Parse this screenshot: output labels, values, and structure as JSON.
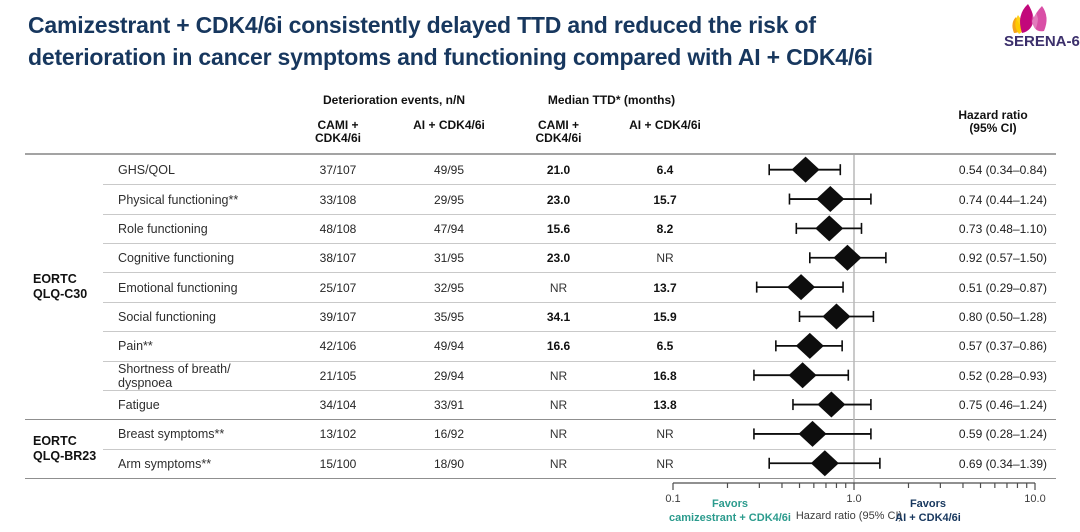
{
  "title": {
    "line1": "Camizestrant + CDK4/6i consistently delayed TTD and reduced the risk of",
    "line2": "deterioration in cancer symptoms and functioning compared with AI + CDK4/6i"
  },
  "logo": {
    "text": "SERENA-6"
  },
  "table": {
    "header": {
      "events_group": "Deterioration events, n/N",
      "ttd_group": "Median TTD* (months)",
      "hr_line1": "Hazard ratio",
      "hr_line2": "(95% CI)",
      "cami_line1": "CAMI +",
      "cami_line2": "CDK4/6i",
      "ai": "AI + CDK4/6i"
    },
    "groups": [
      {
        "line1": "EORTC",
        "line2": "QLQ-C30",
        "row_span": [
          0,
          8
        ]
      },
      {
        "line1": "EORTC",
        "line2": "QLQ-BR23",
        "row_span": [
          9,
          10
        ]
      }
    ]
  },
  "chart_data": {
    "type": "forest",
    "x_axis": {
      "scale": "log",
      "min": 0.1,
      "max": 10.0,
      "tick_values": [
        0.1,
        1.0,
        10.0
      ],
      "tick_labels": [
        "0.1",
        "1.0",
        "10.0"
      ],
      "label": "Hazard ratio (95% CI)",
      "reference_line": 1.0
    },
    "favors_left": {
      "line1": "Favors",
      "line2": "camizestrant + CDK4/6i"
    },
    "favors_right": {
      "line1": "Favors",
      "line2": "AI + CDK4/6i"
    },
    "rows": [
      {
        "group": "EORTC QLQ-C30",
        "label": "GHS/QOL",
        "events_cami": "37/107",
        "events_ai": "49/95",
        "ttd_cami": "21.0",
        "ttd_ai": "6.4",
        "hr": 0.54,
        "ci_low": 0.34,
        "ci_high": 0.84,
        "hr_text": "0.54 (0.34–0.84)"
      },
      {
        "group": "EORTC QLQ-C30",
        "label": "Physical functioning**",
        "events_cami": "33/108",
        "events_ai": "29/95",
        "ttd_cami": "23.0",
        "ttd_ai": "15.7",
        "hr": 0.74,
        "ci_low": 0.44,
        "ci_high": 1.24,
        "hr_text": "0.74 (0.44–1.24)"
      },
      {
        "group": "EORTC QLQ-C30",
        "label": "Role functioning",
        "events_cami": "48/108",
        "events_ai": "47/94",
        "ttd_cami": "15.6",
        "ttd_ai": "8.2",
        "hr": 0.73,
        "ci_low": 0.48,
        "ci_high": 1.1,
        "hr_text": "0.73 (0.48–1.10)"
      },
      {
        "group": "EORTC QLQ-C30",
        "label": "Cognitive functioning",
        "events_cami": "38/107",
        "events_ai": "31/95",
        "ttd_cami": "23.0",
        "ttd_ai": "NR",
        "hr": 0.92,
        "ci_low": 0.57,
        "ci_high": 1.5,
        "hr_text": "0.92 (0.57–1.50)"
      },
      {
        "group": "EORTC QLQ-C30",
        "label": "Emotional functioning",
        "events_cami": "25/107",
        "events_ai": "32/95",
        "ttd_cami": "NR",
        "ttd_ai": "13.7",
        "hr": 0.51,
        "ci_low": 0.29,
        "ci_high": 0.87,
        "hr_text": "0.51 (0.29–0.87)"
      },
      {
        "group": "EORTC QLQ-C30",
        "label": "Social functioning",
        "events_cami": "39/107",
        "events_ai": "35/95",
        "ttd_cami": "34.1",
        "ttd_ai": "15.9",
        "hr": 0.8,
        "ci_low": 0.5,
        "ci_high": 1.28,
        "hr_text": "0.80 (0.50–1.28)"
      },
      {
        "group": "EORTC QLQ-C30",
        "label": "Pain**",
        "events_cami": "42/106",
        "events_ai": "49/94",
        "ttd_cami": "16.6",
        "ttd_ai": "6.5",
        "hr": 0.57,
        "ci_low": 0.37,
        "ci_high": 0.86,
        "hr_text": "0.57 (0.37–0.86)"
      },
      {
        "group": "EORTC QLQ-C30",
        "label": "Shortness of breath/ dyspnoea",
        "events_cami": "21/105",
        "events_ai": "29/94",
        "ttd_cami": "NR",
        "ttd_ai": "16.8",
        "hr": 0.52,
        "ci_low": 0.28,
        "ci_high": 0.93,
        "hr_text": "0.52 (0.28–0.93)"
      },
      {
        "group": "EORTC QLQ-C30",
        "label": "Fatigue",
        "events_cami": "34/104",
        "events_ai": "33/91",
        "ttd_cami": "NR",
        "ttd_ai": "13.8",
        "hr": 0.75,
        "ci_low": 0.46,
        "ci_high": 1.24,
        "hr_text": "0.75 (0.46–1.24)"
      },
      {
        "group": "EORTC QLQ-BR23",
        "label": "Breast symptoms**",
        "events_cami": "13/102",
        "events_ai": "16/92",
        "ttd_cami": "NR",
        "ttd_ai": "NR",
        "hr": 0.59,
        "ci_low": 0.28,
        "ci_high": 1.24,
        "hr_text": "0.59 (0.28–1.24)"
      },
      {
        "group": "EORTC QLQ-BR23",
        "label": "Arm symptoms**",
        "events_cami": "15/100",
        "events_ai": "18/90",
        "ttd_cami": "NR",
        "ttd_ai": "NR",
        "hr": 0.69,
        "ci_low": 0.34,
        "ci_high": 1.39,
        "hr_text": "0.69 (0.34–1.39)"
      }
    ]
  },
  "colors": {
    "navy": "#17375E",
    "teal_text": "#2B9B8D",
    "stripe": "#EFEFF0",
    "teal_dark": "#B2DCD0",
    "teal_light": "#E6F3EF",
    "lavender_dark": "#C6C8D5",
    "lavender_light": "#E1E3EC",
    "ink": "#111111",
    "logo_magenta": "#C2077B",
    "logo_pink": "#D94FA6",
    "logo_orange": "#F5A21C",
    "logo_yellow": "#FFCE00"
  }
}
